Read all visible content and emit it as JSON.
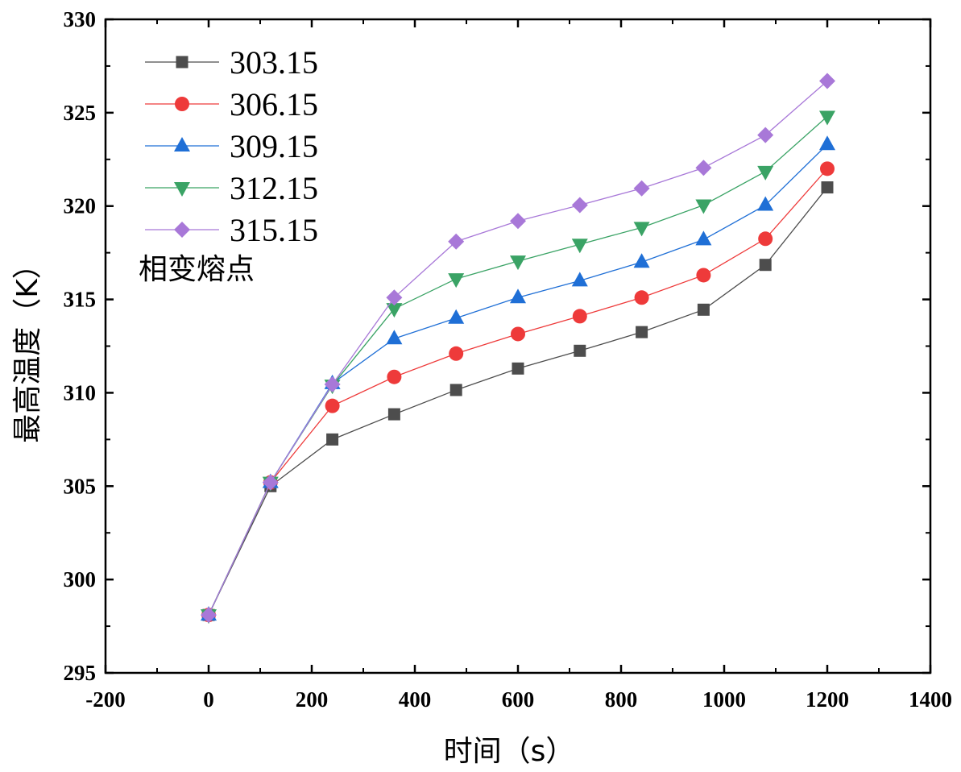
{
  "chart_data": {
    "type": "line",
    "title": "",
    "xlabel": "时间（s）",
    "ylabel": "最高温度（K）",
    "xlim": [
      -200,
      1400
    ],
    "ylim": [
      295,
      330
    ],
    "xticks": [
      -200,
      0,
      200,
      400,
      600,
      800,
      1000,
      1200,
      1400
    ],
    "yticks": [
      295,
      300,
      305,
      310,
      315,
      320,
      325,
      330
    ],
    "grid": false,
    "legend_title": "相变熔点",
    "legend_position": "top-left",
    "x": [
      0,
      120,
      240,
      360,
      480,
      600,
      720,
      840,
      960,
      1080,
      1200
    ],
    "series": [
      {
        "name": "303.15",
        "color": "#4d4d4d",
        "marker": "square",
        "values": [
          298.1,
          305.0,
          307.5,
          308.85,
          310.15,
          311.3,
          312.25,
          313.25,
          314.45,
          316.85,
          321.0
        ]
      },
      {
        "name": "306.15",
        "color": "#ee3a3a",
        "marker": "circle",
        "values": [
          298.1,
          305.2,
          309.3,
          310.85,
          312.1,
          313.15,
          314.1,
          315.1,
          316.3,
          318.25,
          322.0
        ]
      },
      {
        "name": "309.15",
        "color": "#1f6fd6",
        "marker": "triangle-up",
        "values": [
          298.1,
          305.2,
          310.5,
          312.9,
          314.0,
          315.1,
          316.0,
          317.0,
          318.2,
          320.05,
          323.3
        ]
      },
      {
        "name": "312.15",
        "color": "#3aa365",
        "marker": "triangle-down",
        "values": [
          298.1,
          305.2,
          310.4,
          314.5,
          316.1,
          317.05,
          317.95,
          318.85,
          320.05,
          321.85,
          324.8
        ]
      },
      {
        "name": "315.15",
        "color": "#a878d8",
        "marker": "diamond",
        "values": [
          298.1,
          305.2,
          310.45,
          315.1,
          318.1,
          319.2,
          320.05,
          320.95,
          322.05,
          323.8,
          326.7
        ]
      }
    ]
  }
}
